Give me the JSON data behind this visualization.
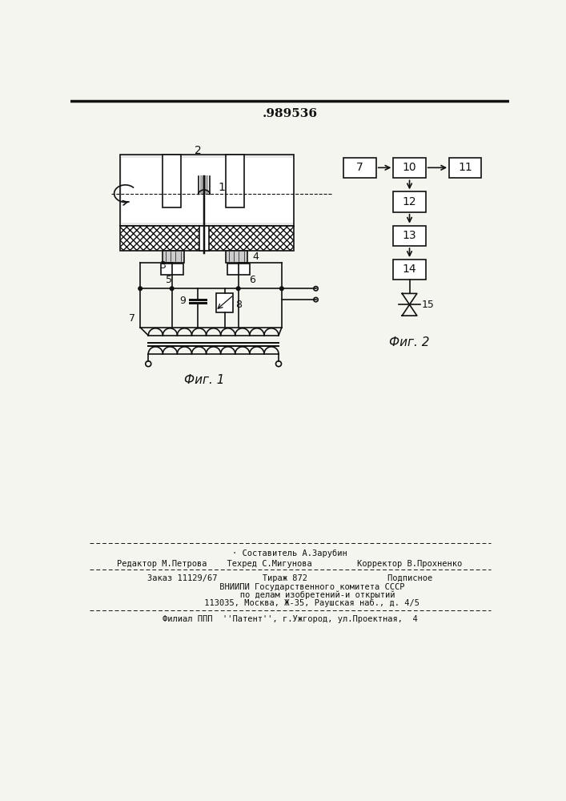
{
  "title": ".989536",
  "bg_color": "#f5f5f0",
  "fig1_label": "Фиг. 1",
  "fig2_label": "Фиг. 2",
  "footer_lines": [
    "· Составитель А.Зарубин",
    "Редактор М.Петрова    Техред С.Мигунова         Корректор В.Прохненко",
    "Заказ 11129/67         Тираж 872                Подписное",
    "         ВНИИПИ Государственного комитета СССР",
    "           по делам изобретений-и открытий",
    "         113035, Москва, Ж-35, Раушская наб., д. 4/5",
    "Филиал ППП  ''Патент'', г.Ужгород, ул.Проектная,  4"
  ]
}
